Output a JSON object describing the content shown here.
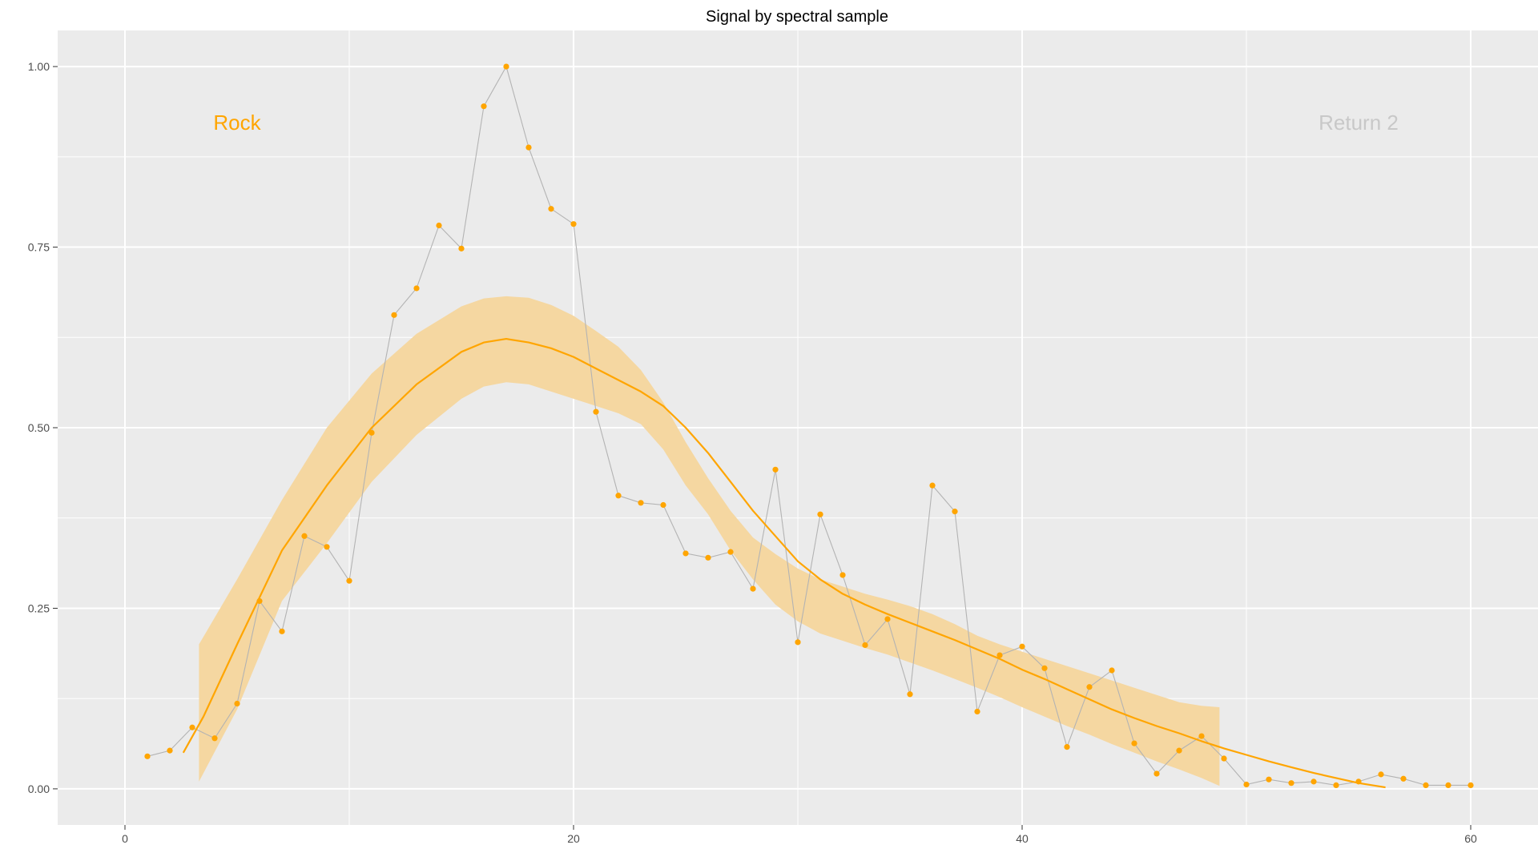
{
  "chart_data": {
    "type": "scatter",
    "title": "Signal by spectral sample",
    "xlabel": "",
    "ylabel": "",
    "xlim": [
      -3,
      63
    ],
    "ylim": [
      -0.05,
      1.05
    ],
    "x_ticks": [
      0,
      20,
      40,
      60
    ],
    "x_tick_labels": [
      "0",
      "20",
      "40",
      "60"
    ],
    "y_ticks": [
      0,
      0.25,
      0.5,
      0.75,
      1.0
    ],
    "y_tick_labels": [
      "0.00",
      "0.25",
      "0.50",
      "0.75",
      "1.00"
    ],
    "grid": true,
    "legend": "none",
    "colors": {
      "panel": "#EBEBEB",
      "grid": "#FFFFFF",
      "points": "#FFA500",
      "connector": "#B3B3B3",
      "smooth": "#FFA500",
      "ribbon": "#F5D7A1",
      "annotation_active": "#FFA500",
      "annotation_muted": "#C8C8C8"
    },
    "annotations": [
      {
        "text": "Rock",
        "x": 5,
        "y": 0.92,
        "color": "#FFA500"
      },
      {
        "text": "Return 2",
        "x": 55,
        "y": 0.92,
        "color": "#C8C8C8"
      }
    ],
    "points": {
      "x": [
        1,
        2,
        3,
        4,
        5,
        6,
        7,
        8,
        9,
        10,
        11,
        12,
        13,
        14,
        15,
        16,
        17,
        18,
        19,
        20,
        21,
        22,
        23,
        24,
        25,
        26,
        27,
        28,
        29,
        30,
        31,
        32,
        33,
        34,
        35,
        36,
        37,
        38,
        39,
        40,
        41,
        42,
        43,
        44,
        45,
        46,
        47,
        48,
        49,
        50,
        51,
        52,
        53,
        54,
        55,
        56,
        57,
        58,
        59,
        60
      ],
      "y": [
        0.045,
        0.053,
        0.085,
        0.07,
        0.118,
        0.26,
        0.218,
        0.35,
        0.335,
        0.288,
        0.493,
        0.656,
        0.693,
        0.78,
        0.748,
        0.945,
        1.0,
        0.888,
        0.803,
        0.782,
        0.522,
        0.406,
        0.396,
        0.393,
        0.326,
        0.32,
        0.328,
        0.277,
        0.442,
        0.203,
        0.38,
        0.296,
        0.199,
        0.235,
        0.131,
        0.42,
        0.384,
        0.107,
        0.185,
        0.197,
        0.167,
        0.058,
        0.141,
        0.164,
        0.063,
        0.021,
        0.053,
        0.073,
        0.042,
        0.006,
        0.013,
        0.008,
        0.01,
        0.005,
        0.01,
        0.02,
        0.014,
        0.005,
        0.005,
        0.005
      ]
    },
    "smooth": {
      "x": [
        2.6,
        3.5,
        5,
        7,
        9,
        11,
        13,
        15,
        16,
        17,
        18,
        19,
        20,
        21,
        22,
        23,
        24,
        25,
        26,
        27,
        28,
        29,
        30,
        31,
        32,
        33,
        34,
        35,
        36,
        37,
        38,
        39,
        40,
        41,
        42,
        43,
        44,
        45,
        46,
        47,
        48,
        49,
        50,
        51,
        52,
        53,
        54,
        55,
        56.2
      ],
      "y": [
        0.05,
        0.1,
        0.2,
        0.33,
        0.42,
        0.5,
        0.56,
        0.605,
        0.618,
        0.623,
        0.618,
        0.61,
        0.598,
        0.582,
        0.566,
        0.55,
        0.53,
        0.5,
        0.465,
        0.425,
        0.385,
        0.35,
        0.315,
        0.29,
        0.27,
        0.255,
        0.242,
        0.23,
        0.218,
        0.206,
        0.193,
        0.18,
        0.165,
        0.152,
        0.138,
        0.124,
        0.11,
        0.098,
        0.087,
        0.077,
        0.066,
        0.056,
        0.047,
        0.038,
        0.03,
        0.022,
        0.015,
        0.008,
        0.002
      ]
    },
    "ribbon": {
      "x": [
        3.3,
        5,
        7,
        9,
        11,
        13,
        15,
        16,
        17,
        18,
        19,
        20,
        21,
        22,
        23,
        24,
        25,
        26,
        27,
        28,
        29,
        30,
        31,
        32,
        33,
        34,
        35,
        36,
        37,
        38,
        39,
        40,
        41,
        42,
        43,
        44,
        45,
        46,
        47,
        48,
        48.8
      ],
      "upper": [
        0.2,
        0.29,
        0.4,
        0.5,
        0.575,
        0.63,
        0.668,
        0.679,
        0.682,
        0.68,
        0.67,
        0.655,
        0.634,
        0.612,
        0.58,
        0.535,
        0.48,
        0.43,
        0.385,
        0.348,
        0.325,
        0.305,
        0.29,
        0.28,
        0.27,
        0.262,
        0.253,
        0.242,
        0.228,
        0.212,
        0.2,
        0.19,
        0.18,
        0.17,
        0.16,
        0.15,
        0.14,
        0.13,
        0.12,
        0.115,
        0.113
      ],
      "lower": [
        0.01,
        0.11,
        0.26,
        0.34,
        0.425,
        0.49,
        0.54,
        0.557,
        0.563,
        0.56,
        0.55,
        0.54,
        0.53,
        0.52,
        0.505,
        0.47,
        0.42,
        0.38,
        0.33,
        0.29,
        0.255,
        0.232,
        0.215,
        0.205,
        0.195,
        0.186,
        0.175,
        0.164,
        0.152,
        0.14,
        0.127,
        0.113,
        0.1,
        0.087,
        0.075,
        0.062,
        0.05,
        0.038,
        0.027,
        0.015,
        0.004
      ]
    }
  }
}
